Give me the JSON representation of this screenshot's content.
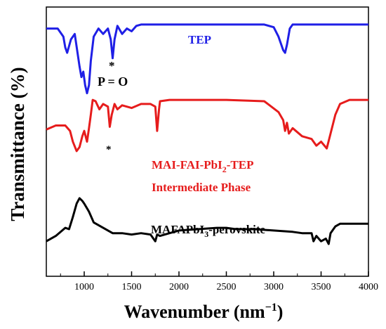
{
  "chart_data": {
    "type": "line",
    "xlabel": "Wavenumber (nm",
    "xlabel_superscript": "−1",
    "ylabel": "Transmittance (%)",
    "xlim": [
      600,
      4000
    ],
    "ylim": [
      0,
      1
    ],
    "xticks": [
      1000,
      1500,
      2000,
      2500,
      3000,
      3500,
      4000
    ],
    "grid": false,
    "series": [
      {
        "name": "TEP",
        "color": "#1f1fe6",
        "x": [
          600,
          720,
          780,
          800,
          820,
          860,
          900,
          950,
          970,
          990,
          1010,
          1030,
          1050,
          1070,
          1100,
          1150,
          1200,
          1250,
          1280,
          1300,
          1320,
          1350,
          1400,
          1450,
          1500,
          1550,
          1600,
          1700,
          2000,
          2500,
          2900,
          3000,
          3050,
          3100,
          3120,
          3140,
          3170,
          3200,
          3300,
          4000
        ],
        "y": [
          0.92,
          0.92,
          0.89,
          0.85,
          0.83,
          0.88,
          0.9,
          0.78,
          0.74,
          0.76,
          0.71,
          0.68,
          0.71,
          0.8,
          0.89,
          0.92,
          0.9,
          0.92,
          0.88,
          0.81,
          0.88,
          0.93,
          0.9,
          0.92,
          0.91,
          0.93,
          0.935,
          0.935,
          0.935,
          0.935,
          0.935,
          0.925,
          0.89,
          0.84,
          0.83,
          0.86,
          0.92,
          0.935,
          0.935,
          0.935
        ]
      },
      {
        "name": "MAI-FAI-PbI₂-TEP Intermediate Phase",
        "color": "#e61c1c",
        "x": [
          600,
          700,
          800,
          850,
          880,
          920,
          950,
          980,
          1000,
          1030,
          1050,
          1070,
          1090,
          1120,
          1160,
          1200,
          1250,
          1270,
          1290,
          1320,
          1350,
          1400,
          1500,
          1600,
          1700,
          1750,
          1770,
          1790,
          1800,
          1900,
          2500,
          2900,
          3050,
          3100,
          3120,
          3140,
          3160,
          3200,
          3300,
          3400,
          3450,
          3500,
          3560,
          3600,
          3650,
          3700,
          3800,
          4000
        ],
        "y": [
          0.545,
          0.56,
          0.56,
          0.54,
          0.5,
          0.465,
          0.48,
          0.52,
          0.54,
          0.5,
          0.55,
          0.6,
          0.655,
          0.65,
          0.62,
          0.64,
          0.63,
          0.555,
          0.6,
          0.64,
          0.62,
          0.635,
          0.625,
          0.64,
          0.64,
          0.63,
          0.54,
          0.62,
          0.65,
          0.655,
          0.655,
          0.65,
          0.61,
          0.58,
          0.54,
          0.57,
          0.53,
          0.55,
          0.52,
          0.51,
          0.485,
          0.5,
          0.475,
          0.53,
          0.6,
          0.64,
          0.655,
          0.655
        ]
      },
      {
        "name": "MAFAPbI₃-perovskite",
        "color": "#000000",
        "x": [
          600,
          700,
          800,
          840,
          880,
          920,
          950,
          980,
          1000,
          1050,
          1100,
          1200,
          1300,
          1400,
          1500,
          1600,
          1700,
          1750,
          1770,
          1800,
          1900,
          2000,
          2200,
          2400,
          2500,
          2600,
          2800,
          3000,
          3200,
          3300,
          3400,
          3420,
          3450,
          3500,
          3550,
          3580,
          3600,
          3650,
          3700,
          3800,
          4000
        ],
        "y": [
          0.13,
          0.15,
          0.18,
          0.175,
          0.22,
          0.27,
          0.29,
          0.28,
          0.27,
          0.24,
          0.2,
          0.18,
          0.16,
          0.16,
          0.155,
          0.16,
          0.155,
          0.13,
          0.155,
          0.15,
          0.16,
          0.17,
          0.175,
          0.18,
          0.18,
          0.175,
          0.175,
          0.17,
          0.165,
          0.16,
          0.16,
          0.13,
          0.15,
          0.13,
          0.14,
          0.12,
          0.16,
          0.185,
          0.195,
          0.195,
          0.195
        ]
      }
    ],
    "annotations": {
      "tep_label": "TEP",
      "po_label": "P = O",
      "star": "*",
      "intermediate_line1_pre": "MAI-FAI-PbI",
      "intermediate_line1_sub": "2",
      "intermediate_line1_post": "-TEP",
      "intermediate_line2": "Intermediate Phase",
      "perovskite_pre": "MAFAPbI",
      "perovskite_sub": "3",
      "perovskite_post": "-perovskite"
    }
  }
}
